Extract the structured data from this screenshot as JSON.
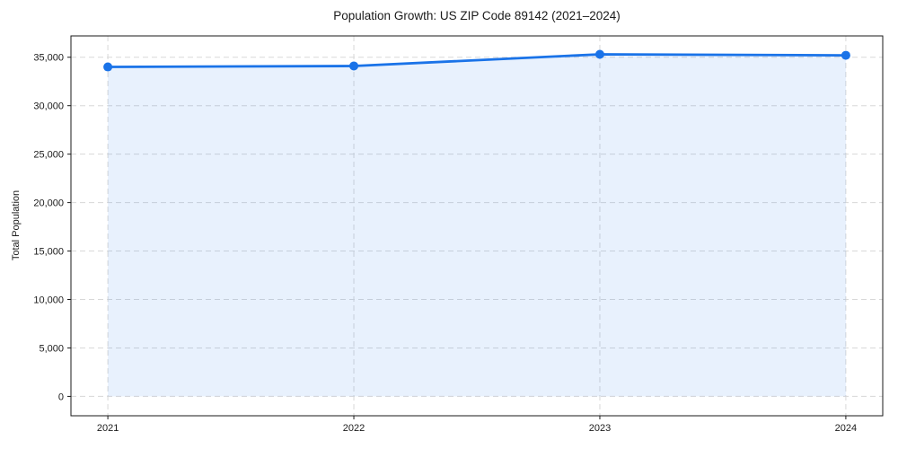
{
  "chart_data": {
    "type": "area",
    "title": "Population Growth: US ZIP Code 89142 (2021–2024)",
    "xlabel": "",
    "ylabel": "Total Population",
    "x": [
      2021,
      2022,
      2023,
      2024
    ],
    "series": [
      {
        "name": "Total Population",
        "values": [
          34000,
          34100,
          35300,
          35200
        ]
      }
    ],
    "xticks": [
      2021,
      2022,
      2023,
      2024
    ],
    "yticks": [
      0,
      5000,
      10000,
      15000,
      20000,
      25000,
      30000,
      35000
    ],
    "xlim": [
      2020.85,
      2024.15
    ],
    "ylim": [
      -2000,
      37200
    ],
    "grid": true,
    "grid_style": "dashed",
    "legend": "none",
    "fill_to": 0,
    "marker": "circle",
    "colors": {
      "line": "#1a73e8",
      "marker": "#1a73e8",
      "fill": "rgba(26,115,232,0.10)",
      "grid": "#d8d8d8",
      "axis": "#1a1a1a",
      "text": "#1a1a1a",
      "background": "#ffffff"
    }
  }
}
